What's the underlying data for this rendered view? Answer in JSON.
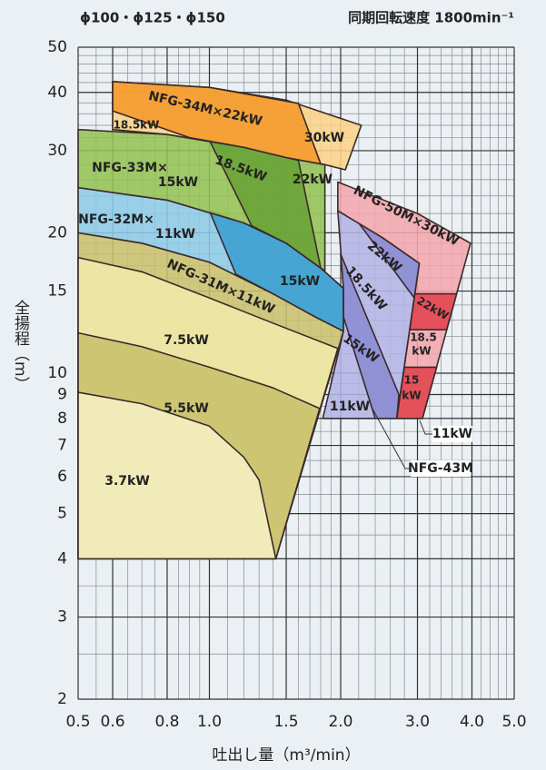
{
  "chart_data": {
    "type": "region",
    "title": "ϕ100・ϕ125・ϕ150",
    "subtitle": "同期回転速度 1800min⁻¹",
    "xlabel": "吐出し量（m³/min）",
    "ylabel": "全揚程（m）",
    "xscale": "log",
    "yscale": "log",
    "xlim": [
      0.5,
      5.0
    ],
    "ylim": [
      2,
      50
    ],
    "xticks": [
      0.5,
      0.6,
      0.8,
      {
        "value": 1,
        "label": "1.0"
      },
      1.5,
      {
        "value": 2,
        "label": "2.0"
      },
      {
        "value": 3,
        "label": "3.0"
      },
      {
        "value": 4,
        "label": "4.0"
      },
      {
        "value": 5,
        "label": "5.0"
      }
    ],
    "yticks": [
      2,
      3,
      4,
      5,
      6,
      7,
      8,
      9,
      10,
      15,
      20,
      30,
      40,
      50
    ],
    "grid": true,
    "xminor": [
      0.55,
      0.65,
      0.7,
      0.75,
      0.85,
      0.9,
      0.95,
      1.1,
      1.2,
      1.3,
      1.4,
      1.6,
      1.7,
      1.8,
      1.9,
      2.2,
      2.4,
      2.6,
      2.8,
      3.2,
      3.4,
      3.6,
      3.8,
      4.2,
      4.4,
      4.6,
      4.8
    ],
    "yminor": [
      2.5,
      3.5,
      4.5,
      5.5,
      6.5,
      7.5,
      8.5,
      9.5,
      11,
      12,
      13,
      14,
      16,
      17,
      18,
      19,
      22,
      24,
      26,
      28,
      32,
      34,
      36,
      38,
      42,
      44,
      46,
      48
    ],
    "regions": [
      {
        "color": "#c9c06c",
        "x": [
          0.5,
          0.7,
          1.0,
          1.4,
          1.75,
          2.03,
          1.42,
          0.5
        ],
        "y": [
          20,
          19,
          17.3,
          14.8,
          13.2,
          12.3,
          4,
          4
        ]
      },
      {
        "color": "#f1e9a9",
        "x": [
          0.5,
          0.7,
          1.0,
          1.4,
          1.97,
          1.42,
          0.5
        ],
        "y": [
          17.7,
          16.5,
          14.5,
          12.8,
          11.3,
          4,
          4
        ]
      },
      {
        "color": "#c9c06c",
        "x": [
          0.5,
          0.7,
          1.0,
          1.4,
          1.79,
          1.42,
          0.5
        ],
        "y": [
          12.2,
          11.4,
          10.3,
          9.3,
          8.4,
          4,
          4
        ]
      },
      {
        "color": "#f6f0c4",
        "x": [
          0.5,
          0.7,
          1.0,
          1.2,
          1.3,
          1.42,
          0.5
        ],
        "y": [
          9.1,
          8.6,
          7.7,
          6.6,
          5.9,
          4,
          4
        ]
      },
      {
        "color": "#8ec9e6",
        "x": [
          0.5,
          0.8,
          1.2,
          1.5,
          1.8,
          2.03,
          2.03,
          1.75,
          1.4,
          1.0,
          0.7,
          0.5
        ],
        "y": [
          25,
          23.5,
          21,
          19,
          16.8,
          15.2,
          12.3,
          13.2,
          14.8,
          17.3,
          19,
          20
        ]
      },
      {
        "color": "#3b9fcf",
        "x": [
          1.0,
          1.2,
          1.5,
          1.8,
          2.03,
          2.03,
          1.75,
          1.4,
          1.15
        ],
        "y": [
          22.3,
          21,
          19,
          16.8,
          15.2,
          12.3,
          13.2,
          14.8,
          16.3
        ]
      },
      {
        "color": "#94c254",
        "x": [
          0.5,
          0.8,
          1.2,
          1.5,
          1.84,
          1.84,
          1.8,
          1.5,
          1.2,
          0.8,
          0.5
        ],
        "y": [
          33.3,
          32.5,
          30.5,
          29,
          28,
          16.6,
          16.8,
          19,
          21,
          23.5,
          25
        ]
      },
      {
        "color": "#69a236",
        "x": [
          1.0,
          1.2,
          1.5,
          1.6,
          1.8,
          1.5,
          1.25
        ],
        "y": [
          31.6,
          30.5,
          29,
          28.6,
          16.8,
          19,
          20.7
        ]
      },
      {
        "color": "#fcd28a",
        "x": [
          0.6,
          1.0,
          1.5,
          2.23,
          2.05,
          1.84,
          1.5,
          1.2,
          0.8,
          0.6
        ],
        "y": [
          42.2,
          41,
          38.5,
          34,
          27.3,
          28,
          29,
          30.5,
          32.5,
          33.3
        ]
      },
      {
        "color": "#f49a2a",
        "x": [
          0.6,
          1.0,
          1.6,
          1.8,
          1.5,
          1.2,
          0.9,
          0.6
        ],
        "y": [
          42.2,
          41,
          37.9,
          28.1,
          29,
          30.5,
          32,
          36.5
        ]
      },
      {
        "color": "#b3b3e5",
        "x": [
          1.97,
          2.5,
          3.03,
          2.69,
          1.82,
          2.03,
          2.03
        ],
        "y": [
          22.3,
          19.5,
          17.2,
          8,
          8,
          12.3,
          15.2
        ]
      },
      {
        "color": "#8b8bd3",
        "x": [
          2.0,
          2.72,
          2.69,
          2.4,
          2.03,
          2.03
        ],
        "y": [
          18,
          9,
          8,
          8,
          13.2,
          15.2
        ]
      },
      {
        "color": "#8b8bd3",
        "x": [
          2.2,
          2.5,
          3.03,
          2.95
        ],
        "y": [
          21,
          19.5,
          17.2,
          14.5
        ]
      },
      {
        "color": "#f2a6ae",
        "x": [
          1.97,
          3.0,
          3.97,
          3.08,
          2.69,
          3.03,
          2.5,
          1.97
        ],
        "y": [
          25.7,
          22,
          19,
          8,
          8,
          17.2,
          19.5,
          22.3
        ]
      },
      {
        "color": "#e2434f",
        "x": [
          2.96,
          3.69,
          3.5,
          2.88
        ],
        "y": [
          14.8,
          14.8,
          12.4,
          12.4
        ]
      },
      {
        "color": "#e2434f",
        "x": [
          2.8,
          3.32,
          3.08,
          2.69
        ],
        "y": [
          10.3,
          10.3,
          8,
          8
        ]
      }
    ],
    "annotations": [
      "NFG-34M×22kW",
      "18.5kW",
      "30kW",
      "NFG-33M×",
      "15kW",
      "18.5kW",
      "22kW",
      "NFG-32M×",
      "11kW",
      "15kW",
      "NFG-31M×11kW",
      "7.5kW",
      "5.5kW",
      "3.7kW",
      "NFG-50M×30kW",
      "22kW",
      "18.5kW",
      "15kW",
      "11kW",
      "22kW",
      "18.5",
      "kW",
      "15",
      "kW",
      "11kW",
      "NFG-43M"
    ]
  }
}
